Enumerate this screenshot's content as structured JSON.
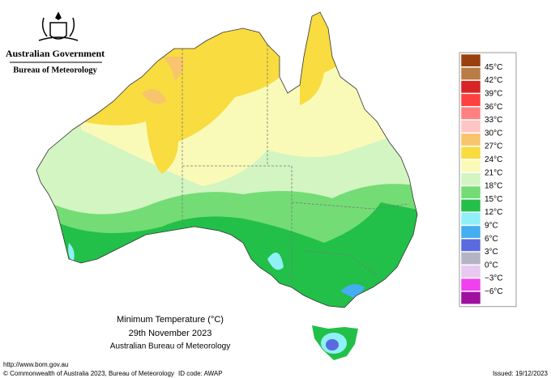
{
  "header": {
    "government": "Australian Government",
    "bureau": "Bureau of Meteorology"
  },
  "map": {
    "title": "Minimum Temperature (°C)",
    "date": "29th November 2023",
    "source": "Australian Bureau of Meteorology"
  },
  "legend": {
    "labels": [
      "45°C",
      "42°C",
      "39°C",
      "36°C",
      "33°C",
      "30°C",
      "27°C",
      "24°C",
      "21°C",
      "18°C",
      "15°C",
      "12°C",
      "9°C",
      "6°C",
      "3°C",
      "0°C",
      "−3°C",
      "−6°C"
    ],
    "colors": [
      "#9a4010",
      "#b97c44",
      "#d82424",
      "#ff4040",
      "#ff8080",
      "#ffc4c4",
      "#f8c46c",
      "#f8dc40",
      "#fafab8",
      "#d2f5c2",
      "#74dc74",
      "#22c048",
      "#90f0f8",
      "#44aef0",
      "#5a6ae0",
      "#b4b4c4",
      "#e8c8f0",
      "#f040f0",
      "#a010a0"
    ]
  },
  "footer": {
    "url": "http://www.bom.gov.au",
    "copyright": "© Commonwealth of Australia 2023, Bureau of Meteorology",
    "id": "ID code: AWAP",
    "issued": "Issued: 19/12/2023"
  }
}
